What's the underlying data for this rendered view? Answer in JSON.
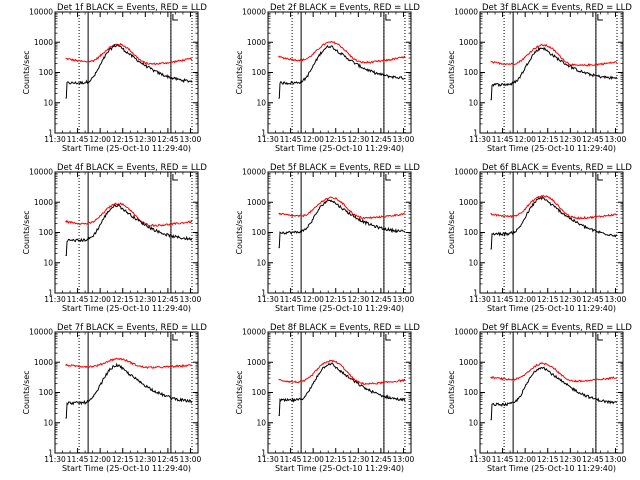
{
  "chart_data": {
    "type": "line",
    "y_scale": "log",
    "ylim": [
      1,
      10000
    ],
    "xlim": [
      "11:30",
      "13:05"
    ],
    "ylabel": "Counts/sec",
    "xlabel": "Start Time (25-Oct-10 11:29:40)",
    "x_ticks": [
      "11:30",
      "11:45",
      "12:00",
      "12:15",
      "12:30",
      "12:45",
      "13:00"
    ],
    "y_ticks": [
      "1",
      "10",
      "100",
      "1000",
      "10000"
    ],
    "dotted_markers": [
      "11:46",
      "12:47",
      "13:01"
    ],
    "solid_markers": [
      "11:52",
      "12:47"
    ],
    "flare_peak": "12:12",
    "series_colors": {
      "events": "#000000",
      "lld": "#ff0000"
    },
    "panels": [
      {
        "title": "Det 1f BLACK = Events, RED = LLD",
        "lld_base": 290,
        "lld_min": 175,
        "lld_peak": 850,
        "ev_base": 45,
        "ev_tail": 45,
        "ev_peak": 800
      },
      {
        "title": "Det 2f BLACK = Events, RED = LLD",
        "lld_base": 330,
        "lld_min": 195,
        "lld_peak": 1000,
        "ev_base": 45,
        "ev_tail": 60,
        "ev_peak": 750
      },
      {
        "title": "Det 3f BLACK = Events, RED = LLD",
        "lld_base": 220,
        "lld_min": 160,
        "lld_peak": 800,
        "ev_base": 40,
        "ev_tail": 60,
        "ev_peak": 650
      },
      {
        "title": "Det 4f BLACK = Events, RED = LLD",
        "lld_base": 230,
        "lld_min": 160,
        "lld_peak": 900,
        "ev_base": 55,
        "ev_tail": 55,
        "ev_peak": 800
      },
      {
        "title": "Det 5f BLACK = Events, RED = LLD",
        "lld_base": 420,
        "lld_min": 280,
        "lld_peak": 1400,
        "ev_base": 100,
        "ev_tail": 100,
        "ev_peak": 1200
      },
      {
        "title": "Det 6f BLACK = Events, RED = LLD",
        "lld_base": 400,
        "lld_min": 280,
        "lld_peak": 1600,
        "ev_base": 90,
        "ev_tail": 70,
        "ev_peak": 1400
      },
      {
        "title": "Det 7f BLACK = Events, RED = LLD",
        "lld_base": 800,
        "lld_min": 650,
        "lld_peak": 1300,
        "ev_base": 45,
        "ev_tail": 45,
        "ev_peak": 800
      },
      {
        "title": "Det 8f BLACK = Events, RED = LLD",
        "lld_base": 260,
        "lld_min": 180,
        "lld_peak": 1100,
        "ev_base": 55,
        "ev_tail": 50,
        "ev_peak": 900
      },
      {
        "title": "Det 9f BLACK = Events, RED = LLD",
        "lld_base": 320,
        "lld_min": 220,
        "lld_peak": 900,
        "ev_base": 40,
        "ev_tail": 40,
        "ev_peak": 700
      }
    ]
  }
}
